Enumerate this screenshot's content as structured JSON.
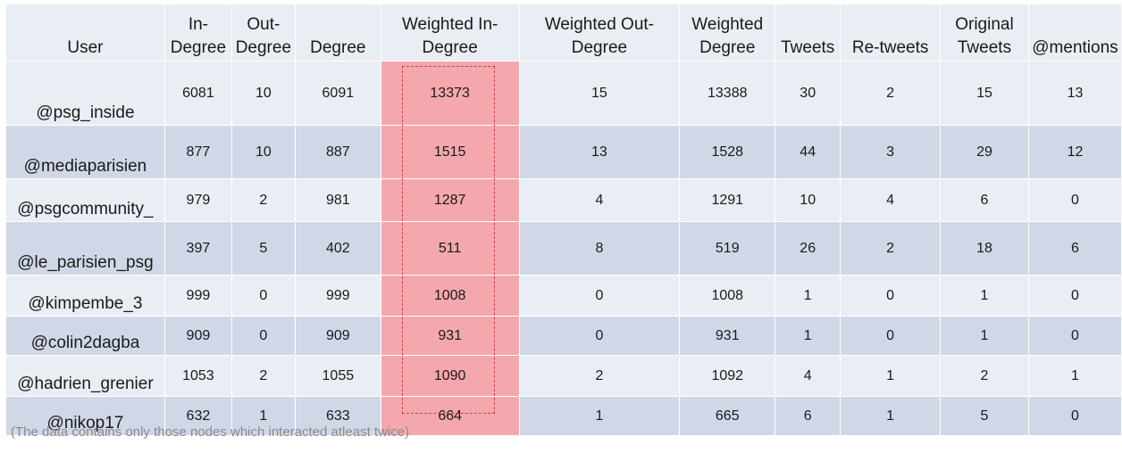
{
  "table": {
    "headers": [
      "User",
      "In-\nDegree",
      "Out-\nDegree",
      "Degree",
      "Weighted In-\nDegree",
      "Weighted Out-\nDegree",
      "Weighted\nDegree",
      "Tweets",
      "Re-tweets",
      "Original\nTweets",
      "@mentions"
    ],
    "rows": [
      [
        "@psg_inside",
        "6081",
        "10",
        "6091",
        "13373",
        "15",
        "13388",
        "30",
        "2",
        "15",
        "13"
      ],
      [
        "@mediaparisien",
        "877",
        "10",
        "887",
        "1515",
        "13",
        "1528",
        "44",
        "3",
        "29",
        "12"
      ],
      [
        "@psgcommunity_",
        "979",
        "2",
        "981",
        "1287",
        "4",
        "1291",
        "10",
        "4",
        "6",
        "0"
      ],
      [
        "@le_parisien_psg",
        "397",
        "5",
        "402",
        "511",
        "8",
        "519",
        "26",
        "2",
        "18",
        "6"
      ],
      [
        "@kimpembe_3",
        "999",
        "0",
        "999",
        "1008",
        "0",
        "1008",
        "1",
        "0",
        "1",
        "0"
      ],
      [
        "@colin2dagba",
        "909",
        "0",
        "909",
        "931",
        "0",
        "931",
        "1",
        "0",
        "1",
        "0"
      ],
      [
        "@hadrien_grenier",
        "1053",
        "2",
        "1055",
        "1090",
        "2",
        "1092",
        "4",
        "1",
        "2",
        "1"
      ],
      [
        "@nikop17",
        "632",
        "1",
        "633",
        "664",
        "1",
        "665",
        "6",
        "1",
        "5",
        "0"
      ]
    ],
    "highlight_color": "#f4a8ad",
    "highlight_border_color": "#c8414a",
    "row_colors": [
      "#e9edf4",
      "#d0d8e8"
    ]
  },
  "footnote": "(The data contains only those nodes which interacted atleast twice)"
}
